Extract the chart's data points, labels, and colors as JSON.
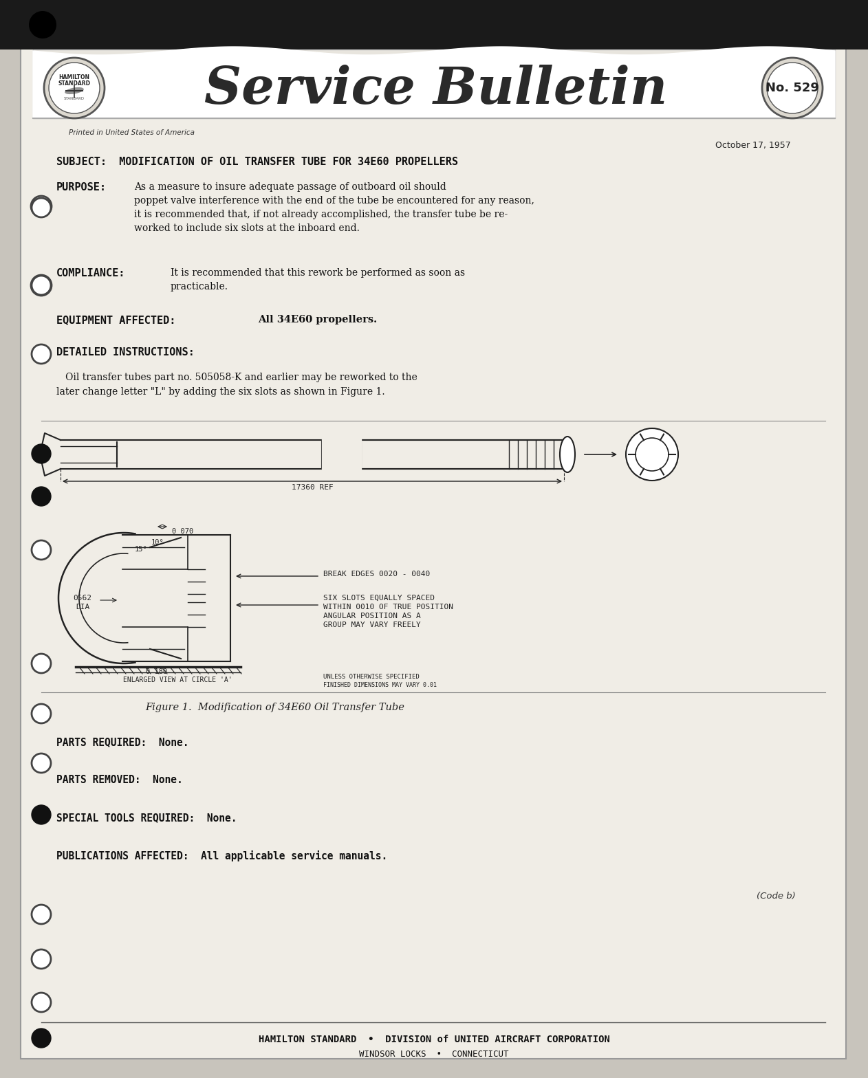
{
  "bg_color": "#c8c4bc",
  "paper_color": "#f0ede6",
  "bulletin_number": "No. 529",
  "printed_text": "Printed in United States of America",
  "date": "October 17, 1957",
  "subject": "SUBJECT:  MODIFICATION OF OIL TRANSFER TUBE FOR 34E60 PROPELLERS",
  "purpose_label": "PURPOSE:",
  "purpose_text": "As a measure to insure adequate passage of outboard oil should\npoppet valve interference with the end of the tube be encountered for any reason,\nit is recommended that, if not already accomplished, the transfer tube be re-\nworked to include six slots at the inboard end.",
  "compliance_label": "COMPLIANCE:",
  "compliance_text": "It is recommended that this rework be performed as soon as\npracticable.",
  "equipment_label": "EQUIPMENT AFFECTED:",
  "equipment_text": "All 34E60 propellers.",
  "detailed_label": "DETAILED INSTRUCTIONS:",
  "detailed_text": "   Oil transfer tubes part no. 505058-K and earlier may be reworked to the\nlater change letter \"L\" by adding the six slots as shown in Figure 1.",
  "figure_caption": "Figure 1.  Modification of 34E60 Oil Transfer Tube",
  "parts_required": "PARTS REQUIRED:  None.",
  "parts_removed": "PARTS REMOVED:  None.",
  "special_tools": "SPECIAL TOOLS REQUIRED:  None.",
  "publications": "PUBLICATIONS AFFECTED:  All applicable service manuals.",
  "code_ref": "(Code b)",
  "footer_line1": "HAMILTON STANDARD  •  DIVISION of UNITED AIRCRAFT CORPORATION",
  "footer_line2": "WINDSOR LOCKS  •  CONNECTICUT"
}
